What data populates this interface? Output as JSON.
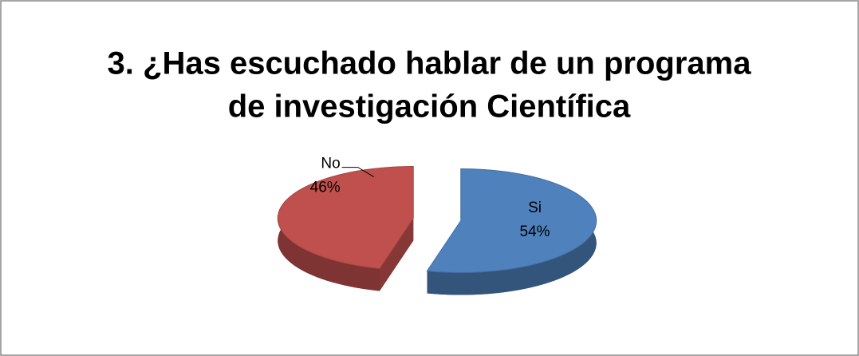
{
  "chart_data": {
    "type": "pie",
    "title": [
      "3. ¿Has escuchado hablar de un programa",
      "de investigación Científica"
    ],
    "categories": [
      "Si",
      "No"
    ],
    "values": [
      54,
      46
    ],
    "value_labels": [
      "54%",
      "46%"
    ],
    "colors": [
      "#4f81bd",
      "#c0504d"
    ]
  }
}
